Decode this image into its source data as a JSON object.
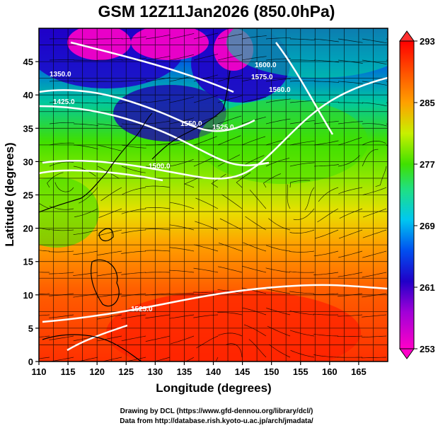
{
  "title": "GSM 12Z11Jan2026 (850.0hPa)",
  "xlabel": "Longitude (degrees)",
  "ylabel": "Latitude  (degrees)",
  "x_ticks": [
    "110",
    "115",
    "120",
    "125",
    "130",
    "135",
    "140",
    "145",
    "150",
    "155",
    "160",
    "165"
  ],
  "y_ticks": [
    "0",
    "5",
    "10",
    "15",
    "20",
    "25",
    "30",
    "35",
    "40",
    "45"
  ],
  "colorbar_ticks": [
    "253",
    "261",
    "269",
    "277",
    "285",
    "293"
  ],
  "contour_labels": [
    "1350.0",
    "1425.0",
    "1500.0",
    "1525.0",
    "1575.0",
    "1560.0",
    "1600.0",
    "1550.0",
    "1525.0"
  ],
  "credits": {
    "line1": "Drawing by DCL (https://www.gfd-dennou.org/library/dcl/)",
    "line2": "Data from http://database.rish.kyoto-u.ac.jp/arch/jmadata/"
  },
  "colors": {
    "warm": "#ff3c00",
    "cold": "#1e00c8",
    "magenta": "#ff00c8"
  },
  "chart_data": {
    "type": "heatmap",
    "title": "GSM 12Z11Jan2026 (850.0hPa)",
    "xlabel": "Longitude (degrees)",
    "ylabel": "Latitude  (degrees)",
    "xlim": [
      110,
      170
    ],
    "ylim": [
      0,
      50
    ],
    "colorbar_range": [
      253,
      293
    ],
    "colorbar_ticks": [
      253,
      261,
      269,
      277,
      285,
      293
    ],
    "grid": true
  }
}
